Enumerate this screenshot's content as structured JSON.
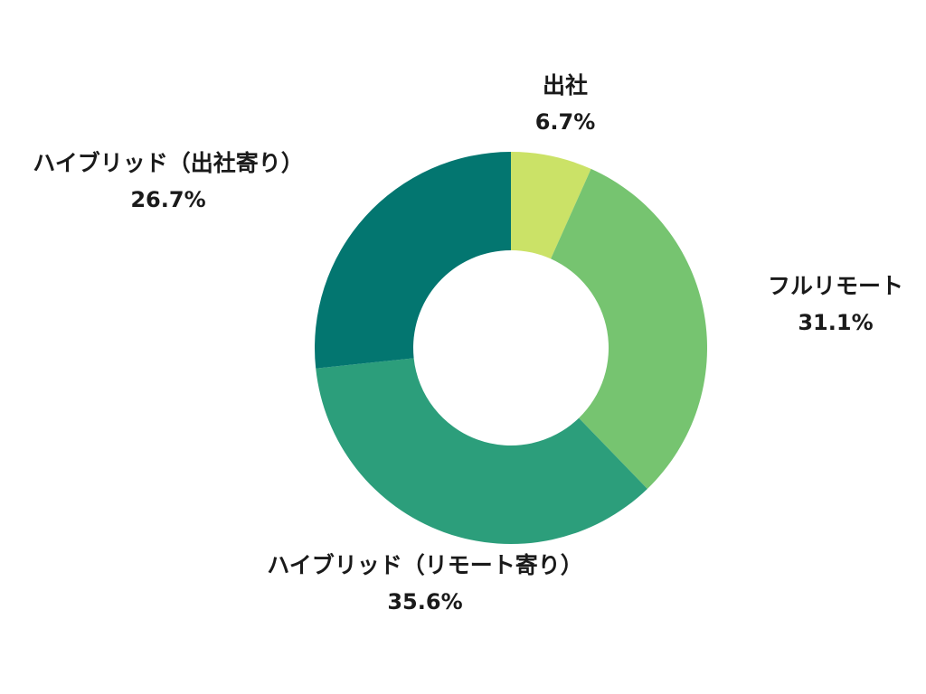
{
  "chart_data": {
    "type": "pie",
    "variant": "donut",
    "title": "",
    "slices": [
      {
        "label": "出社",
        "value": 6.7,
        "display": "6.7%",
        "color": "#cbe267"
      },
      {
        "label": "フルリモート",
        "value": 31.1,
        "display": "31.1%",
        "color": "#76c470"
      },
      {
        "label": "ハイブリッド（リモート寄り）",
        "value": 35.6,
        "display": "35.6%",
        "color": "#2c9e7b"
      },
      {
        "label": "ハイブリッド（出社寄り）",
        "value": 26.7,
        "display": "26.7%",
        "color": "#037670"
      }
    ],
    "start_angle": "top",
    "direction": "clockwise",
    "legend": "none",
    "labels": "outside"
  }
}
